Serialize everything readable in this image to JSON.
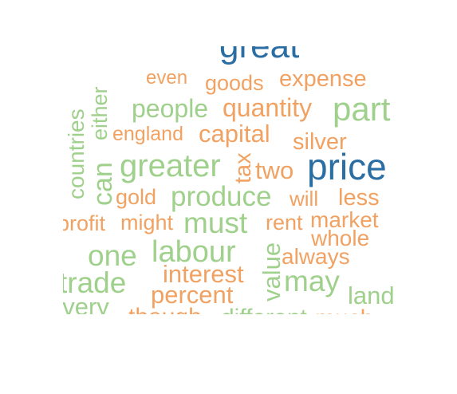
{
  "wordcloud": {
    "palette": {
      "orange": "#f1a262",
      "green": "#9fd08c",
      "blue": "#2b6ea3"
    },
    "words": [
      {
        "text": "great",
        "color": "blue"
      },
      {
        "text": "even",
        "color": "orange"
      },
      {
        "text": "goods",
        "color": "orange"
      },
      {
        "text": "expense",
        "color": "orange"
      },
      {
        "text": "either",
        "color": "green",
        "orientation": "vertical"
      },
      {
        "text": "people",
        "color": "green"
      },
      {
        "text": "quantity",
        "color": "orange"
      },
      {
        "text": "part",
        "color": "green"
      },
      {
        "text": "countries",
        "color": "green",
        "orientation": "vertical"
      },
      {
        "text": "england",
        "color": "orange"
      },
      {
        "text": "capital",
        "color": "orange"
      },
      {
        "text": "silver",
        "color": "orange"
      },
      {
        "text": "can",
        "color": "green",
        "orientation": "vertical"
      },
      {
        "text": "greater",
        "color": "green"
      },
      {
        "text": "tax",
        "color": "orange",
        "orientation": "vertical"
      },
      {
        "text": "two",
        "color": "orange"
      },
      {
        "text": "price",
        "color": "blue"
      },
      {
        "text": "gold",
        "color": "orange"
      },
      {
        "text": "produce",
        "color": "green"
      },
      {
        "text": "will",
        "color": "orange"
      },
      {
        "text": "less",
        "color": "orange"
      },
      {
        "text": "profit",
        "color": "orange"
      },
      {
        "text": "might",
        "color": "orange"
      },
      {
        "text": "must",
        "color": "green"
      },
      {
        "text": "rent",
        "color": "orange"
      },
      {
        "text": "market",
        "color": "orange"
      },
      {
        "text": "whole",
        "color": "orange"
      },
      {
        "text": "one",
        "color": "green"
      },
      {
        "text": "labour",
        "color": "green"
      },
      {
        "text": "value",
        "color": "green",
        "orientation": "vertical"
      },
      {
        "text": "always",
        "color": "orange"
      },
      {
        "text": "trade",
        "color": "green"
      },
      {
        "text": "interest",
        "color": "orange"
      },
      {
        "text": "may",
        "color": "green"
      },
      {
        "text": "percent",
        "color": "orange"
      },
      {
        "text": "land",
        "color": "green"
      },
      {
        "text": "every",
        "color": "green"
      },
      {
        "text": "though",
        "color": "orange"
      },
      {
        "text": "different",
        "color": "green"
      },
      {
        "text": "much",
        "color": "orange"
      }
    ]
  }
}
